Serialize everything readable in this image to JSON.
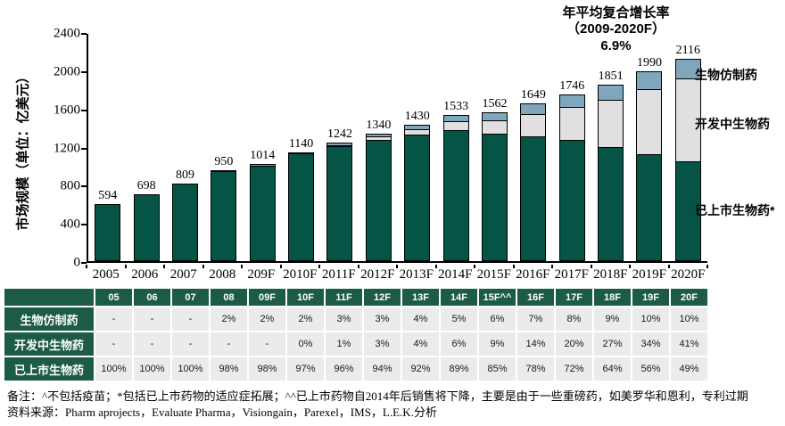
{
  "title": {
    "line1": "年平均复合增长率",
    "line2": "（2009-2020F）",
    "line3": "6.9%"
  },
  "colors": {
    "marketed_green": "#055445",
    "in_development_gray": "#e0e0e0",
    "biosimilar_blue": "#7fa6bd",
    "bar_border": "#000000",
    "table_header_green": "#1d5b49",
    "table_cell_gray": "#ebebeb"
  },
  "legend": {
    "items": [
      {
        "label": "生物仿制药",
        "color": "#7fa6bd"
      },
      {
        "label": "开发中生物药",
        "color": "#e0e0e0"
      },
      {
        "label": "已上市生物药*",
        "color": "#055445"
      }
    ]
  },
  "chart_data": {
    "type": "bar",
    "stacked": true,
    "title": "年平均复合增长率（2009-2020F）6.9%",
    "xlabel": "",
    "ylabel": "市场规模（单位：亿美元）",
    "ylim": [
      0,
      2400
    ],
    "yticks": [
      0,
      400,
      800,
      1200,
      1600,
      2000,
      2400
    ],
    "grid": false,
    "legend_position": "right",
    "categories": [
      "2005",
      "2006",
      "2007",
      "2008",
      "209F",
      "2010F",
      "2011F",
      "2012F",
      "2013F",
      "2014F",
      "2015F",
      "2016F",
      "2017F",
      "2018F",
      "2019F",
      "2020F"
    ],
    "totals": [
      594,
      698,
      809,
      950,
      1014,
      1140,
      1242,
      1340,
      1430,
      1533,
      1562,
      1649,
      1746,
      1851,
      1990,
      2116
    ],
    "series": [
      {
        "name": "已上市生物药*",
        "color": "#055445",
        "pct": [
          100,
          100,
          100,
          98,
          98,
          97,
          96,
          94,
          92,
          89,
          85,
          78,
          72,
          64,
          56,
          49
        ]
      },
      {
        "name": "开发中生物药",
        "color": "#e0e0e0",
        "pct": [
          0,
          0,
          0,
          0,
          0,
          0,
          1,
          3,
          4,
          6,
          9,
          14,
          20,
          27,
          34,
          41
        ]
      },
      {
        "name": "生物仿制药",
        "color": "#7fa6bd",
        "pct": [
          0,
          0,
          0,
          2,
          2,
          2,
          3,
          3,
          4,
          5,
          6,
          7,
          8,
          9,
          10,
          10
        ]
      }
    ]
  },
  "table": {
    "col_headers": [
      "05",
      "06",
      "07",
      "08",
      "09F",
      "10F",
      "11F",
      "12F",
      "13F",
      "14F",
      "15F^^",
      "16F",
      "17F",
      "18F",
      "19F",
      "20F"
    ],
    "rows": [
      {
        "label": "生物仿制药",
        "values": [
          "-",
          "-",
          "-",
          "2%",
          "2%",
          "2%",
          "3%",
          "3%",
          "4%",
          "5%",
          "6%",
          "7%",
          "8%",
          "9%",
          "10%",
          "10%"
        ]
      },
      {
        "label": "开发中生物药",
        "values": [
          "-",
          "-",
          "-",
          "-",
          "-",
          "0%",
          "1%",
          "3%",
          "4%",
          "6%",
          "9%",
          "14%",
          "20%",
          "27%",
          "34%",
          "41%"
        ]
      },
      {
        "label": "已上市生物药",
        "values": [
          "100%",
          "100%",
          "100%",
          "98%",
          "98%",
          "97%",
          "96%",
          "94%",
          "92%",
          "89%",
          "85%",
          "78%",
          "72%",
          "64%",
          "56%",
          "49%"
        ]
      }
    ]
  },
  "notes": {
    "remark": "备注：^不包括疫苗；*包括已上市药物的适应症拓展；^^已上市药物自2014年后销售将下降，主要是由于一些重磅药，如美罗华和恩利，专利过期",
    "source": "资料来源：Pharm aprojects，Evaluate Pharma，Visiongain，Parexel，IMS，L.E.K.分析"
  }
}
